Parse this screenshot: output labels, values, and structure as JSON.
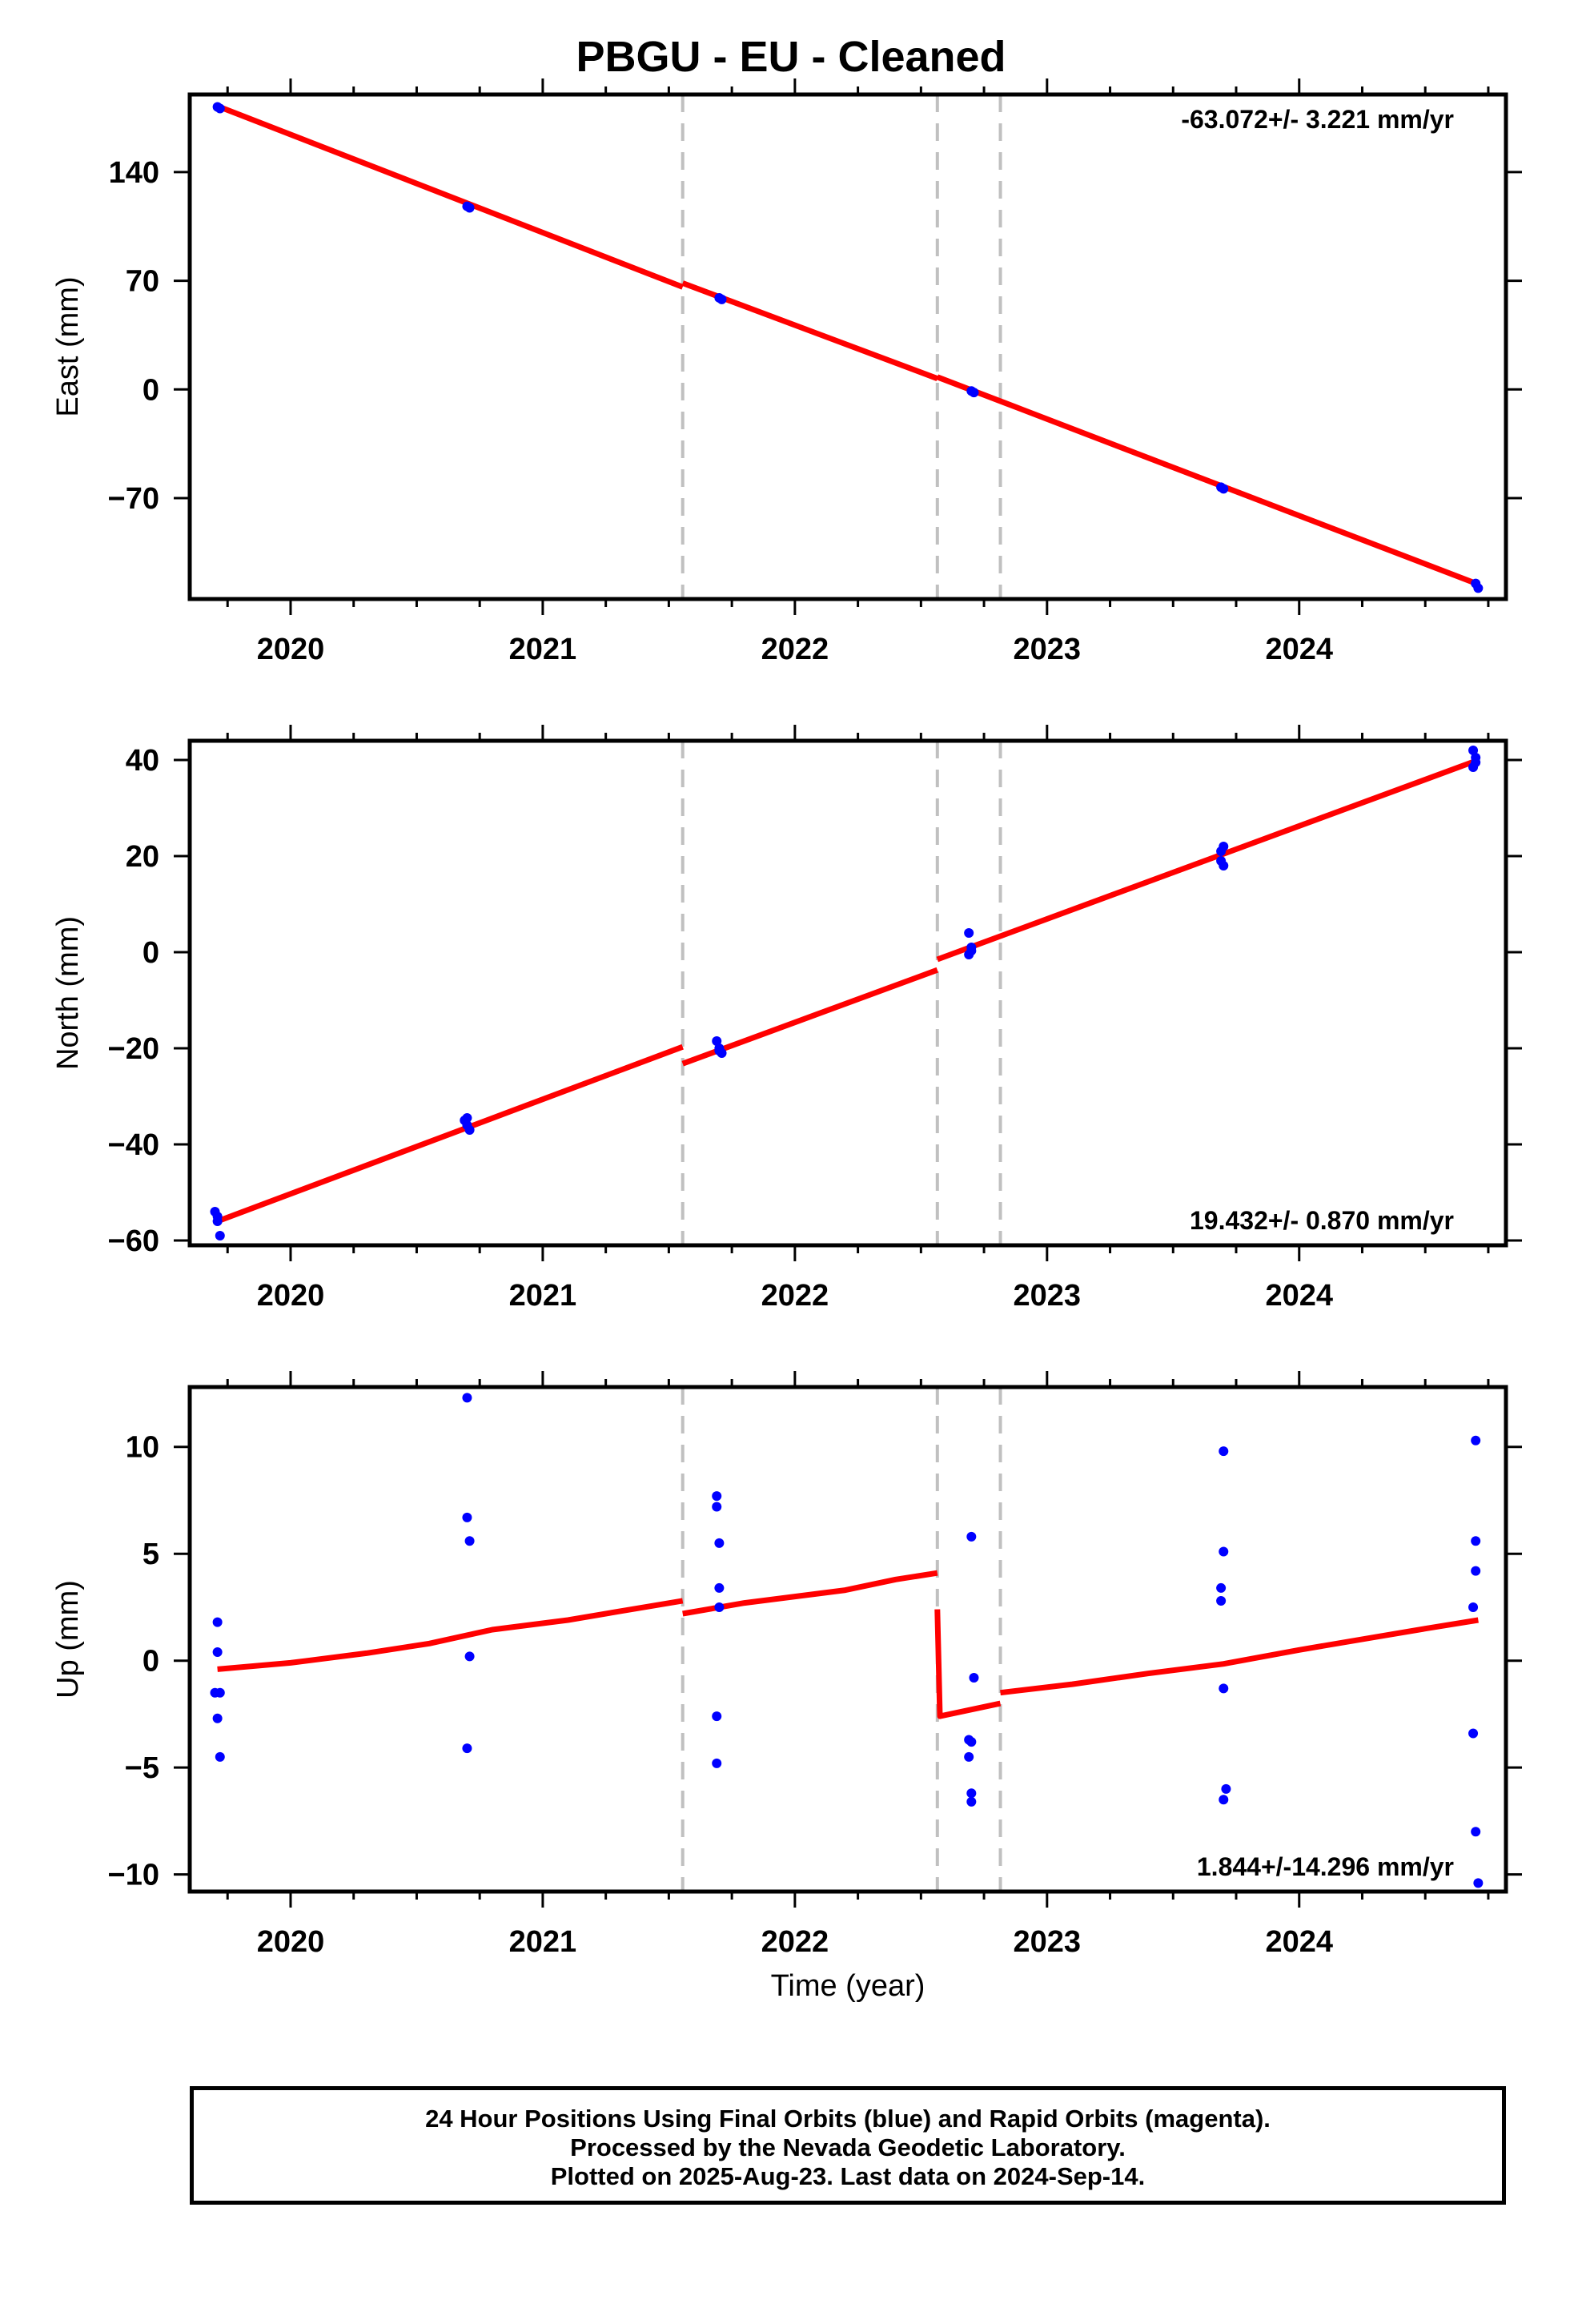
{
  "title": "PBGU  - EU - Cleaned",
  "xlabel": "Time (year)",
  "x_tick_labels": [
    "2020",
    "2021",
    "2022",
    "2023",
    "2024"
  ],
  "x_range": [
    2019.6,
    2024.82
  ],
  "breaks": [
    2021.555,
    2022.565,
    2022.815
  ],
  "colors": {
    "fit": "#ff0000",
    "points": "#0000ff",
    "breaks": "#c0c0c0"
  },
  "caption": {
    "line1": "24 Hour Positions Using Final Orbits (blue) and Rapid Orbits (magenta).",
    "line2": "Processed by the Nevada Geodetic Laboratory.",
    "line3": "Plotted on 2025-Aug-23. Last data on 2024-Sep-14."
  },
  "chart_data": [
    {
      "type": "scatter",
      "ylabel": "East (mm)",
      "rate_label": "-63.072+/- 3.221 mm/yr",
      "rate_position": "top-right",
      "ylim": [
        -135,
        190
      ],
      "yticks": [
        -70,
        0,
        70,
        140
      ],
      "y_tick_labels": [
        "−70",
        "0",
        "70",
        "140"
      ],
      "points": [
        [
          2019.71,
          182
        ],
        [
          2019.72,
          181
        ],
        [
          2020.7,
          118
        ],
        [
          2020.71,
          117
        ],
        [
          2021.7,
          59
        ],
        [
          2021.71,
          58
        ],
        [
          2022.7,
          -1
        ],
        [
          2022.71,
          -2
        ],
        [
          2023.69,
          -63
        ],
        [
          2023.7,
          -64
        ],
        [
          2024.7,
          -125
        ],
        [
          2024.71,
          -128
        ]
      ],
      "fit_segments": [
        [
          [
            2019.71,
            182.5
          ],
          [
            2021.555,
            66
          ]
        ],
        [
          [
            2021.555,
            68.5
          ],
          [
            2022.565,
            7
          ]
        ],
        [
          [
            2022.565,
            8
          ],
          [
            2024.71,
            -125.5
          ]
        ]
      ]
    },
    {
      "type": "scatter",
      "ylabel": "North (mm)",
      "rate_label": "19.432+/- 0.870 mm/yr",
      "rate_position": "bottom-right",
      "ylim": [
        -61,
        44
      ],
      "yticks": [
        -60,
        -40,
        -20,
        0,
        20,
        40
      ],
      "y_tick_labels": [
        "−60",
        "−40",
        "−20",
        "0",
        "20",
        "40"
      ],
      "points": [
        [
          2019.7,
          -54
        ],
        [
          2019.71,
          -55
        ],
        [
          2019.72,
          -59
        ],
        [
          2019.71,
          -56
        ],
        [
          2020.69,
          -35
        ],
        [
          2020.7,
          -36
        ],
        [
          2020.71,
          -37
        ],
        [
          2020.7,
          -34.5
        ],
        [
          2021.69,
          -18.5
        ],
        [
          2021.7,
          -20
        ],
        [
          2021.71,
          -21
        ],
        [
          2021.7,
          -20.5
        ],
        [
          2022.69,
          4
        ],
        [
          2022.7,
          1
        ],
        [
          2022.69,
          -0.5
        ],
        [
          2022.7,
          0.3
        ],
        [
          2023.69,
          21
        ],
        [
          2023.7,
          22
        ],
        [
          2023.69,
          19
        ],
        [
          2023.7,
          18
        ],
        [
          2024.69,
          42
        ],
        [
          2024.7,
          40.5
        ],
        [
          2024.69,
          38.5
        ],
        [
          2024.7,
          39.5
        ]
      ],
      "fit_segments": [
        [
          [
            2019.71,
            -56
          ],
          [
            2021.555,
            -19.7
          ]
        ],
        [
          [
            2021.555,
            -23.2
          ],
          [
            2022.565,
            -3.7
          ]
        ],
        [
          [
            2022.565,
            -1.5
          ],
          [
            2024.71,
            40
          ]
        ]
      ]
    },
    {
      "type": "scatter",
      "ylabel": "Up (mm)",
      "rate_label": "1.844+/-14.296 mm/yr",
      "rate_position": "bottom-right",
      "ylim": [
        -10.8,
        12.8
      ],
      "yticks": [
        -10,
        -5,
        0,
        5,
        10
      ],
      "y_tick_labels": [
        "−10",
        "−5",
        "0",
        "5",
        "10"
      ],
      "points": [
        [
          2019.71,
          1.8
        ],
        [
          2019.71,
          0.4
        ],
        [
          2019.7,
          -1.5
        ],
        [
          2019.72,
          -1.5
        ],
        [
          2019.71,
          -2.7
        ],
        [
          2019.72,
          -4.5
        ],
        [
          2020.7,
          12.3
        ],
        [
          2020.7,
          6.7
        ],
        [
          2020.71,
          5.6
        ],
        [
          2020.71,
          0.2
        ],
        [
          2020.7,
          -4.1
        ],
        [
          2021.69,
          7.7
        ],
        [
          2021.69,
          7.2
        ],
        [
          2021.7,
          5.5
        ],
        [
          2021.7,
          3.4
        ],
        [
          2021.7,
          2.5
        ],
        [
          2021.69,
          -2.6
        ],
        [
          2021.69,
          -4.8
        ],
        [
          2022.7,
          5.8
        ],
        [
          2022.71,
          -0.8
        ],
        [
          2022.69,
          -3.7
        ],
        [
          2022.7,
          -3.8
        ],
        [
          2022.69,
          -4.5
        ],
        [
          2022.7,
          -6.2
        ],
        [
          2022.7,
          -6.6
        ],
        [
          2023.7,
          9.8
        ],
        [
          2023.7,
          5.1
        ],
        [
          2023.69,
          3.4
        ],
        [
          2023.69,
          2.8
        ],
        [
          2023.7,
          -1.3
        ],
        [
          2023.71,
          -6.0
        ],
        [
          2023.7,
          -6.5
        ],
        [
          2024.7,
          10.3
        ],
        [
          2024.7,
          5.6
        ],
        [
          2024.7,
          4.2
        ],
        [
          2024.69,
          2.5
        ],
        [
          2024.69,
          -3.4
        ],
        [
          2024.7,
          -8.0
        ],
        [
          2024.71,
          -10.4
        ]
      ],
      "fit_segments": [
        [
          [
            2019.71,
            -0.4
          ],
          [
            2020.0,
            -0.1
          ],
          [
            2020.3,
            0.35
          ],
          [
            2020.55,
            0.8
          ],
          [
            2020.8,
            1.45
          ],
          [
            2021.1,
            1.9
          ],
          [
            2021.3,
            2.3
          ],
          [
            2021.555,
            2.8
          ]
        ],
        [
          [
            2021.555,
            2.2
          ],
          [
            2021.8,
            2.7
          ],
          [
            2022.0,
            3.0
          ],
          [
            2022.2,
            3.3
          ],
          [
            2022.4,
            3.8
          ],
          [
            2022.565,
            4.1
          ]
        ],
        [
          [
            2022.565,
            2.4
          ],
          [
            2022.575,
            -2.6
          ],
          [
            2022.815,
            -2.0
          ]
        ],
        [
          [
            2022.815,
            -1.5
          ],
          [
            2023.1,
            -1.1
          ],
          [
            2023.4,
            -0.6
          ],
          [
            2023.7,
            -0.15
          ],
          [
            2024.0,
            0.5
          ],
          [
            2024.3,
            1.1
          ],
          [
            2024.5,
            1.5
          ],
          [
            2024.71,
            1.9
          ]
        ]
      ]
    }
  ]
}
